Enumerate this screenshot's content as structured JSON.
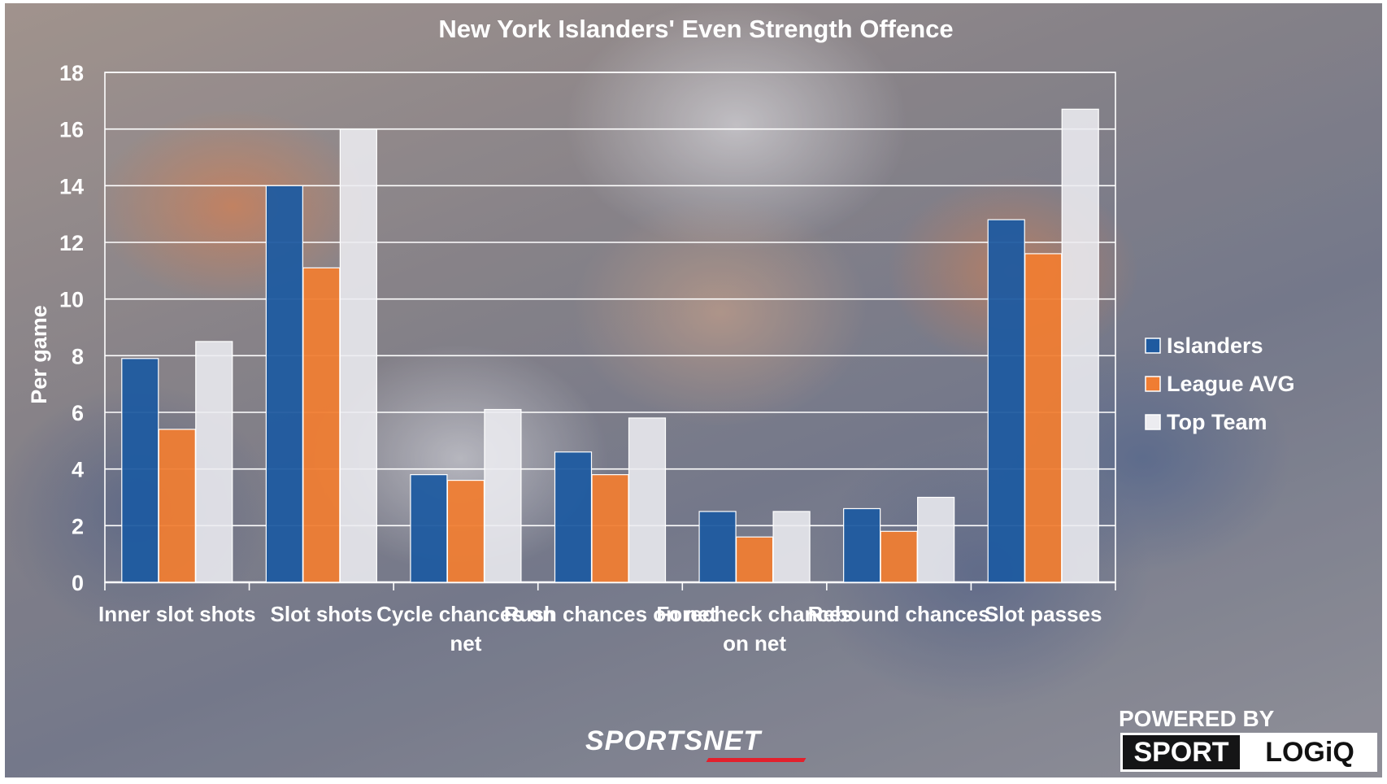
{
  "chart_data": {
    "type": "bar",
    "title": "New York Islanders' Even Strength Offence",
    "xlabel": "",
    "ylabel": "Per game",
    "ylim": [
      0,
      18
    ],
    "yticks": [
      0,
      2,
      4,
      6,
      8,
      10,
      12,
      14,
      16,
      18
    ],
    "grid": true,
    "legend_position": "right",
    "categories": [
      "Inner slot shots",
      "Slot shots",
      "Cycle chances on net",
      "Rush chances on net",
      "Forecheck chances on net",
      "Rebound chances",
      "Slot passes"
    ],
    "series": [
      {
        "name": "Islanders",
        "color": "#1e5aa0",
        "values": [
          7.9,
          14.0,
          3.8,
          4.6,
          2.5,
          2.6,
          12.8
        ]
      },
      {
        "name": "League AVG",
        "color": "#f07d32",
        "values": [
          5.4,
          11.1,
          3.6,
          3.8,
          1.6,
          1.8,
          11.6
        ]
      },
      {
        "name": "Top Team",
        "color": "#ececf0",
        "values": [
          8.5,
          16.0,
          6.1,
          5.8,
          2.5,
          3.0,
          16.7
        ]
      }
    ]
  },
  "branding": {
    "sportsnet": "SPORTSNET",
    "powered_by": "POWERED BY",
    "sport": "SPORT",
    "logiq": "LOGiQ"
  }
}
